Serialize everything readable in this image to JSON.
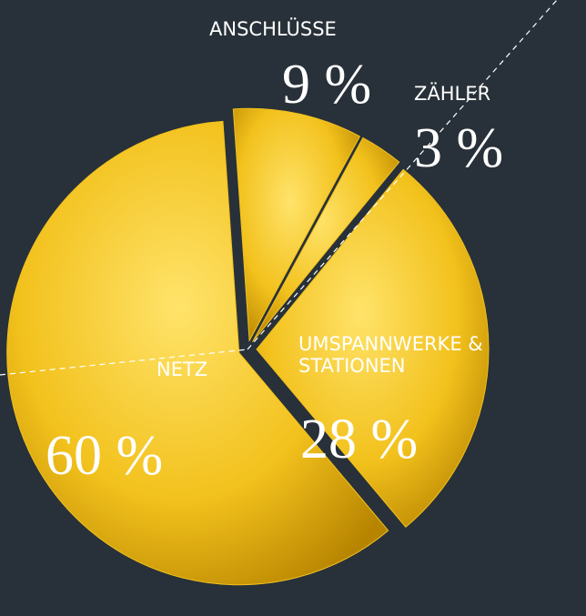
{
  "chart_data": {
    "type": "pie",
    "categories": [
      "ANSCHLÜSSE",
      "ZÄHLER",
      "UMSPANNWERKE & STATIONEN",
      "NETZ"
    ],
    "values": [
      9,
      3,
      28,
      60
    ],
    "value_labels": [
      "9 %",
      "3 %",
      "28 %",
      "60 %"
    ],
    "color": "#f2c11c"
  }
}
